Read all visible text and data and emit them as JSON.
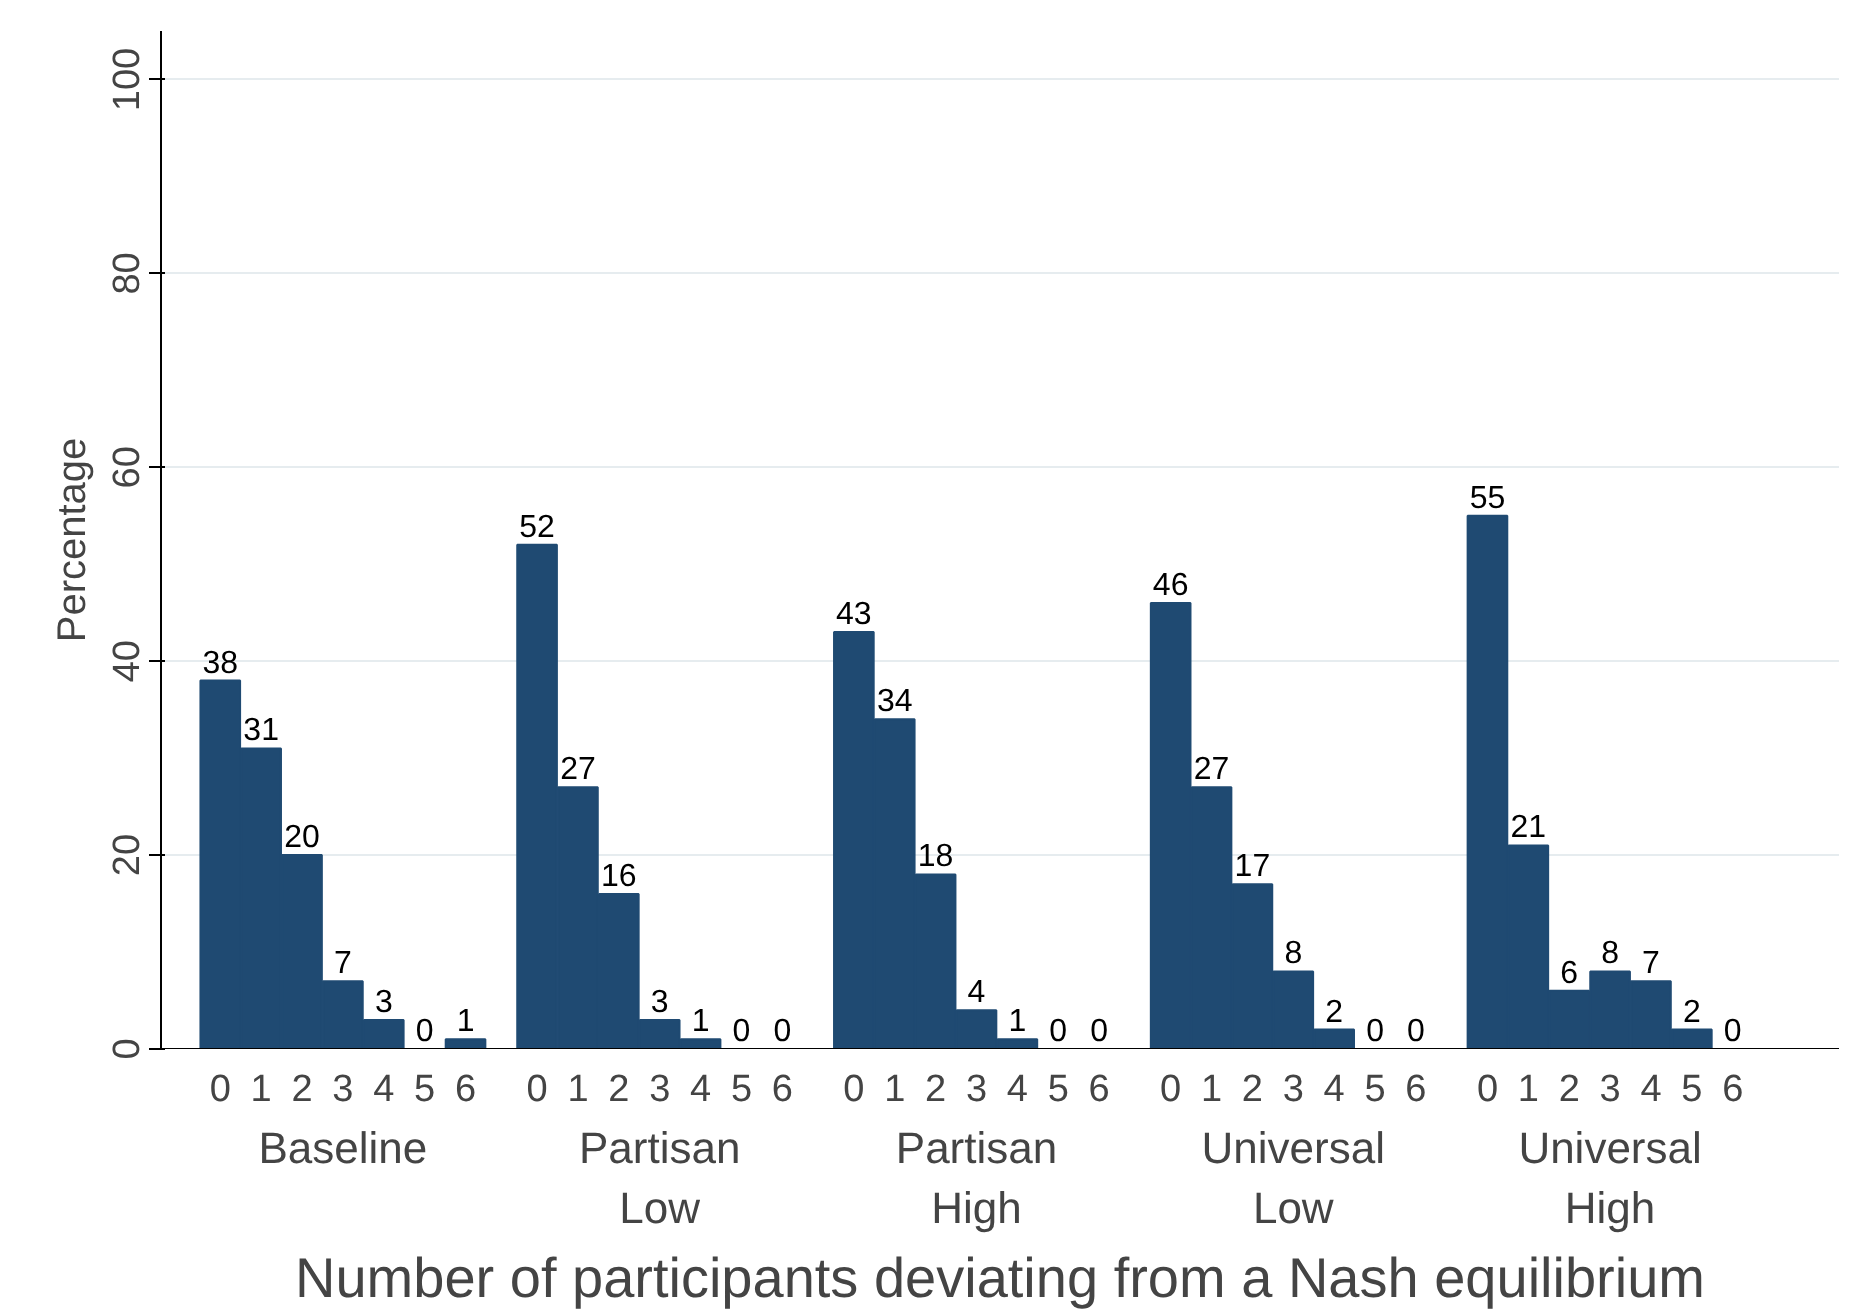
{
  "chart_data": {
    "type": "bar",
    "xlabel": "Number of participants deviating from a Nash equilibrium",
    "ylabel": "Percentage",
    "categories": [
      "0",
      "1",
      "2",
      "3",
      "4",
      "5",
      "6",
      "0",
      "1",
      "2",
      "3",
      "4",
      "5",
      "6",
      "0",
      "1",
      "2",
      "3",
      "4",
      "5",
      "6",
      "0",
      "1",
      "2",
      "3",
      "4",
      "5",
      "6",
      "0",
      "1",
      "2",
      "3",
      "4",
      "5",
      "6"
    ],
    "values": [
      38,
      31,
      20,
      7,
      3,
      0,
      1,
      52,
      27,
      16,
      3,
      1,
      0,
      0,
      43,
      34,
      18,
      4,
      1,
      0,
      0,
      46,
      27,
      17,
      8,
      2,
      0,
      0,
      55,
      21,
      6,
      8,
      7,
      2,
      0
    ],
    "color": "#1f4a72",
    "ylim": [
      0,
      105
    ],
    "yticks": [
      0,
      20,
      40,
      60,
      80,
      100
    ],
    "grid": "y",
    "data_labels": true,
    "annotations": [
      "Baseline",
      "Partisan Low",
      "Partisan High",
      "Universal Low",
      "Universal High"
    ]
  }
}
